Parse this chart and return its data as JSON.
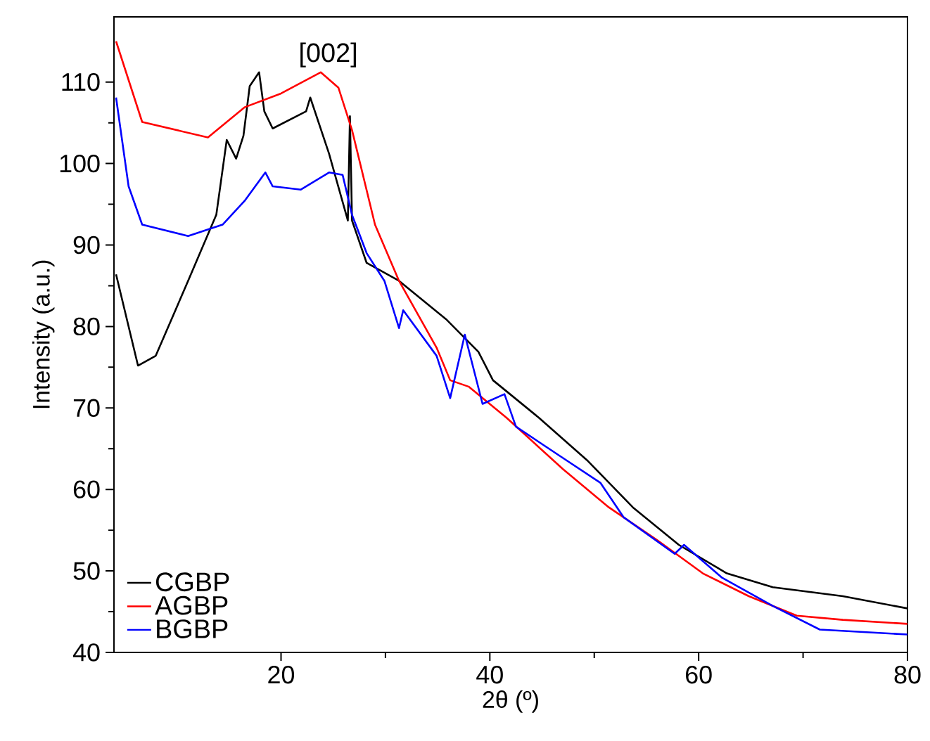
{
  "chart_data": {
    "type": "line",
    "xlabel": "2θ (º)",
    "ylabel": "Intensity (a.u.)",
    "xlim": [
      4,
      80
    ],
    "ylim": [
      40,
      118
    ],
    "xticks": [
      20,
      40,
      60,
      80
    ],
    "yticks": [
      40,
      50,
      60,
      70,
      80,
      90,
      100,
      110
    ],
    "legend": "bottom left",
    "grid": false,
    "annotations": [
      "[002]"
    ],
    "series": [
      {
        "name": "CGBP",
        "color": "#000000",
        "x": [
          4.2,
          6.3,
          8,
          11.1,
          13.8,
          14.8,
          15.7,
          16.4,
          17,
          17.9,
          18.4,
          19.2,
          22.4,
          22.8,
          24.6,
          26.4,
          26.6,
          26.8,
          28.2,
          31.3,
          35.8,
          38.9,
          40.3,
          44.7,
          49.3,
          53.7,
          58.1,
          62.7,
          67.1,
          73.8,
          80
        ],
        "values": [
          86.4,
          75.2,
          76.4,
          85.6,
          93.7,
          102.9,
          100.6,
          103.4,
          109.5,
          111.2,
          106.4,
          104.3,
          106.4,
          108.1,
          101.2,
          93,
          105.8,
          93,
          87.8,
          85.6,
          80.9,
          76.9,
          73.4,
          68.8,
          63.6,
          57.8,
          53.2,
          49.7,
          48,
          46.9,
          45.4
        ]
      },
      {
        "name": "AGBP",
        "color": "#ff0000",
        "x": [
          4.2,
          6.7,
          13,
          16.5,
          20,
          23.8,
          25.5,
          26.8,
          29,
          31.3,
          34.9,
          36.2,
          38,
          41.6,
          47,
          51.4,
          56,
          60.4,
          64.8,
          69.4,
          73.8,
          80
        ],
        "values": [
          115,
          105.1,
          103.2,
          106.9,
          108.6,
          111.2,
          109.3,
          104.1,
          92.5,
          85.6,
          77.4,
          73.4,
          72.6,
          68.8,
          62.5,
          57.8,
          53.8,
          49.7,
          46.9,
          44.5,
          44,
          43.5
        ]
      },
      {
        "name": "BGBP",
        "color": "#0000ff",
        "x": [
          4.2,
          5.4,
          6.7,
          11.1,
          14.4,
          16.5,
          18.5,
          19.2,
          21.9,
          24.6,
          25.9,
          26.8,
          28.2,
          29.9,
          31.3,
          31.7,
          34.9,
          36.2,
          37.6,
          39.3,
          41.4,
          42.5,
          46.6,
          50.6,
          52.8,
          57.7,
          58.6,
          62.2,
          67.1,
          71.6,
          80
        ],
        "values": [
          108.1,
          97.2,
          92.5,
          91.1,
          92.5,
          95.4,
          98.9,
          97.2,
          96.8,
          98.9,
          98.6,
          93.7,
          89,
          85.6,
          79.8,
          82,
          76.4,
          71.2,
          79,
          70.5,
          71.7,
          67.7,
          64.2,
          60.8,
          56.6,
          52.1,
          53.2,
          49.2,
          45.7,
          42.8,
          42.2
        ]
      }
    ]
  }
}
